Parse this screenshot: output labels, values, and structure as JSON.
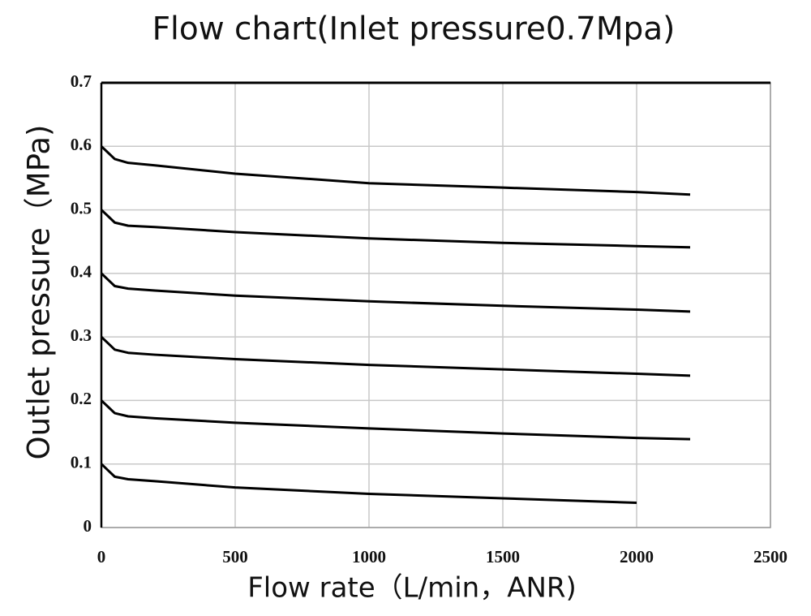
{
  "chart_data": {
    "type": "line",
    "title": "Flow chart(Inlet pressure0.7Mpa)",
    "x_label": "Flow rate（L/min，ANR)",
    "y_label": "Outlet pressure（MPa)",
    "x": [
      0,
      25,
      50,
      100,
      200,
      500,
      1000,
      1500,
      2000,
      2200
    ],
    "series": [
      {
        "color": "#000000",
        "values": [
          0.6,
          0.59,
          0.58,
          0.574,
          0.57,
          0.557,
          0.542,
          0.535,
          0.528,
          0.524
        ]
      },
      {
        "color": "#000000",
        "values": [
          0.5,
          0.49,
          0.48,
          0.475,
          0.473,
          0.465,
          0.455,
          0.448,
          0.443,
          0.441
        ]
      },
      {
        "color": "#000000",
        "values": [
          0.4,
          0.39,
          0.38,
          0.376,
          0.373,
          0.365,
          0.356,
          0.349,
          0.343,
          0.34
        ]
      },
      {
        "color": "#000000",
        "values": [
          0.3,
          0.29,
          0.28,
          0.275,
          0.272,
          0.265,
          0.256,
          0.249,
          0.242,
          0.239
        ]
      },
      {
        "color": "#000000",
        "values": [
          0.2,
          0.19,
          0.18,
          0.175,
          0.172,
          0.165,
          0.156,
          0.148,
          0.141,
          0.139
        ]
      },
      {
        "color": "#000000",
        "values": [
          0.1,
          0.09,
          0.08,
          0.076,
          0.073,
          0.063,
          0.053,
          0.046,
          0.039,
          null
        ]
      }
    ],
    "xlim": [
      0,
      2500
    ],
    "xticks": [
      0,
      500,
      1000,
      1500,
      2000,
      2500
    ],
    "ylim": [
      0,
      0.7
    ],
    "yticks": [
      0,
      0.1,
      0.2,
      0.3,
      0.4,
      0.5,
      0.6,
      0.7
    ],
    "grid": true
  }
}
